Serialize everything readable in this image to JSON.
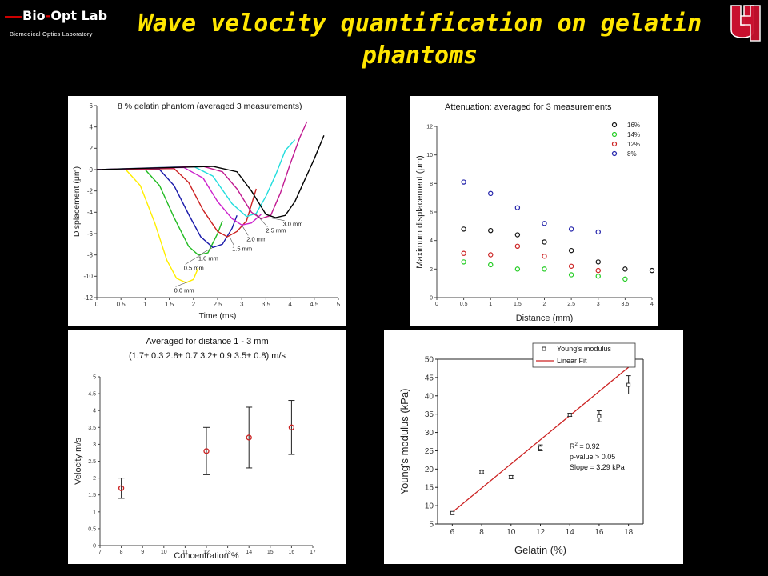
{
  "header": {
    "logo_main_1": "Bio",
    "logo_main_2": "Opt",
    "logo_main_3": " Lab",
    "logo_sub": "Biomedical Optics Laboratory",
    "title": "Wave velocity quantification on gelatin phantoms",
    "uh_logo": "UH"
  },
  "colors": {
    "background": "#000000",
    "title": "#ffe600",
    "logo_red": "#cc0000"
  },
  "chart_data": [
    {
      "type": "line",
      "title": "8 % gelatin phantom (averaged 3 measurements)",
      "xlabel": "Time (ms)",
      "ylabel": "Displacement (μm)",
      "xlim": [
        0,
        5
      ],
      "ylim": [
        -12,
        6
      ],
      "xticks": [
        "0",
        "0.5",
        "1",
        "1.5",
        "2",
        "2.5",
        "3",
        "3.5",
        "4",
        "4.5",
        "5"
      ],
      "yticks": [
        "-12",
        "-10",
        "-8",
        "-6",
        "-4",
        "-2",
        "0",
        "2",
        "4",
        "6"
      ],
      "series": [
        {
          "name": "0.0 mm",
          "color": "#ffee00",
          "points": [
            [
              0,
              0
            ],
            [
              0.6,
              0
            ],
            [
              0.9,
              -1.5
            ],
            [
              1.2,
              -5
            ],
            [
              1.45,
              -8.5
            ],
            [
              1.65,
              -10.2
            ],
            [
              1.85,
              -10.6
            ],
            [
              2.0,
              -10.3
            ],
            [
              2.1,
              -9.2
            ]
          ]
        },
        {
          "name": "0.5 mm",
          "color": "#22bb22",
          "points": [
            [
              0,
              0
            ],
            [
              1.0,
              0
            ],
            [
              1.3,
              -1.5
            ],
            [
              1.6,
              -4.5
            ],
            [
              1.9,
              -7.2
            ],
            [
              2.1,
              -8.0
            ],
            [
              2.3,
              -7.8
            ],
            [
              2.5,
              -6.0
            ],
            [
              2.6,
              -4.8
            ]
          ]
        },
        {
          "name": "1.0 mm",
          "color": "#1a1aaa",
          "points": [
            [
              0,
              0
            ],
            [
              1.3,
              0
            ],
            [
              1.6,
              -1.5
            ],
            [
              1.9,
              -4.2
            ],
            [
              2.15,
              -6.3
            ],
            [
              2.4,
              -7.3
            ],
            [
              2.6,
              -7.0
            ],
            [
              2.8,
              -5.5
            ],
            [
              2.9,
              -4.3
            ]
          ]
        },
        {
          "name": "1.5 mm",
          "color": "#cc2222",
          "points": [
            [
              0,
              0
            ],
            [
              1.6,
              0.1
            ],
            [
              1.9,
              -1.2
            ],
            [
              2.2,
              -3.8
            ],
            [
              2.5,
              -5.8
            ],
            [
              2.7,
              -6.3
            ],
            [
              2.9,
              -5.8
            ],
            [
              3.1,
              -4.8
            ],
            [
              3.3,
              -1.8
            ]
          ]
        },
        {
          "name": "2.0 mm",
          "color": "#cc22cc",
          "points": [
            [
              0,
              0
            ],
            [
              1.8,
              0.2
            ],
            [
              2.2,
              -0.8
            ],
            [
              2.5,
              -3.0
            ],
            [
              2.8,
              -4.6
            ],
            [
              3.0,
              -5.2
            ],
            [
              3.2,
              -5.0
            ],
            [
              3.4,
              -4.2
            ]
          ]
        },
        {
          "name": "2.5 mm",
          "color": "#22dddd",
          "points": [
            [
              0,
              0
            ],
            [
              2.0,
              0.3
            ],
            [
              2.4,
              -0.6
            ],
            [
              2.8,
              -3.2
            ],
            [
              3.1,
              -4.4
            ],
            [
              3.3,
              -4.1
            ],
            [
              3.5,
              -2.5
            ],
            [
              3.7,
              -0.5
            ],
            [
              3.9,
              1.8
            ],
            [
              4.1,
              2.8
            ]
          ]
        },
        {
          "name": "3.0 mm",
          "color": "#c01890",
          "points": [
            [
              0,
              0
            ],
            [
              2.2,
              0.3
            ],
            [
              2.6,
              -0.2
            ],
            [
              2.9,
              -1.8
            ],
            [
              3.2,
              -4.0
            ],
            [
              3.4,
              -4.6
            ],
            [
              3.6,
              -4.3
            ],
            [
              3.8,
              -2.2
            ],
            [
              4.0,
              0.5
            ],
            [
              4.2,
              3.0
            ],
            [
              4.35,
              4.5
            ]
          ]
        },
        {
          "name": "3.0 mm (b)",
          "color": "#000000",
          "points": [
            [
              0,
              0
            ],
            [
              2.4,
              0.3
            ],
            [
              2.9,
              -0.2
            ],
            [
              3.2,
              -2.0
            ],
            [
              3.5,
              -4.2
            ],
            [
              3.7,
              -4.5
            ],
            [
              3.9,
              -4.3
            ],
            [
              4.1,
              -3.0
            ],
            [
              4.3,
              -1.0
            ],
            [
              4.5,
              1.0
            ],
            [
              4.7,
              3.2
            ]
          ]
        }
      ],
      "annotations": [
        "0.0 mm",
        "0.5 mm",
        "1.0 mm",
        "1.5 mm",
        "2.0 mm",
        "2.5 mm",
        "3.0 mm"
      ]
    },
    {
      "type": "scatter",
      "title": "Attenuation: averaged for 3 measurements",
      "xlabel": "Distance (mm)",
      "ylabel": "Maximum displacement (μm)",
      "xlim": [
        0,
        4
      ],
      "ylim": [
        0,
        12
      ],
      "xticks": [
        "0",
        "0.5",
        "1",
        "1.5",
        "2",
        "2.5",
        "3",
        "3.5",
        "4"
      ],
      "yticks": [
        "0",
        "2",
        "4",
        "6",
        "8",
        "10",
        "12"
      ],
      "legend_position": "top-right",
      "series": [
        {
          "name": "16%",
          "color": "#111111",
          "x": [
            0.5,
            1,
            1.5,
            2,
            2.5,
            3,
            3.5,
            4
          ],
          "y": [
            4.8,
            4.7,
            4.4,
            3.9,
            3.3,
            2.5,
            2.0,
            1.9
          ]
        },
        {
          "name": "14%",
          "color": "#22cc22",
          "x": [
            0.5,
            1,
            1.5,
            2,
            2.5,
            3,
            3.5
          ],
          "y": [
            2.5,
            2.3,
            2.0,
            2.0,
            1.6,
            1.5,
            1.3
          ]
        },
        {
          "name": "12%",
          "color": "#cc2222",
          "x": [
            0.5,
            1,
            1.5,
            2,
            2.5,
            3
          ],
          "y": [
            3.1,
            3.0,
            3.6,
            2.9,
            2.2,
            1.9
          ]
        },
        {
          "name": "8%",
          "color": "#2222aa",
          "x": [
            0.5,
            1,
            1.5,
            2,
            2.5,
            3
          ],
          "y": [
            8.1,
            7.3,
            6.3,
            5.2,
            4.8,
            4.6
          ]
        }
      ]
    },
    {
      "type": "scatter",
      "title": "Averaged for distance 1 - 3 mm",
      "subtitle": "(1.7± 0.3  2.8± 0.7  3.2± 0.9  3.5± 0.8) m/s",
      "xlabel": "Concentration %",
      "ylabel": "Velocity m/s",
      "xlim": [
        7,
        17
      ],
      "ylim": [
        0,
        5
      ],
      "xticks": [
        "7",
        "8",
        "9",
        "10",
        "11",
        "12",
        "13",
        "14",
        "15",
        "16",
        "17"
      ],
      "yticks": [
        "0",
        "0.5",
        "1",
        "1.5",
        "2",
        "2.5",
        "3",
        "3.5",
        "4",
        "4.5",
        "5"
      ],
      "x": [
        8,
        12,
        14,
        16
      ],
      "y": [
        1.7,
        2.8,
        3.2,
        3.5
      ],
      "error": [
        0.3,
        0.7,
        0.9,
        0.8
      ],
      "color": "#cc2222"
    },
    {
      "type": "scatter",
      "xlabel": "Gelatin (%)",
      "ylabel": "Young's modulus (kPa)",
      "xlim": [
        5,
        19
      ],
      "ylim": [
        5,
        50
      ],
      "xticks": [
        "6",
        "8",
        "10",
        "12",
        "14",
        "16",
        "18"
      ],
      "yticks": [
        "5",
        "10",
        "15",
        "20",
        "25",
        "30",
        "35",
        "40",
        "45",
        "50"
      ],
      "legend": [
        "Young's modulus",
        "Linear Fit"
      ],
      "legend_position": "top-center",
      "x": [
        6,
        8,
        10,
        12,
        14,
        16,
        18
      ],
      "y": [
        8,
        19.2,
        17.8,
        25.8,
        34.8,
        34.4,
        43
      ],
      "error": [
        0.4,
        0.4,
        0.4,
        0.8,
        0.4,
        1.5,
        2.5
      ],
      "fit": {
        "x": [
          6,
          18
        ],
        "y": [
          8.2,
          47.8
        ],
        "color": "#cc2222"
      },
      "annotation": {
        "r2_base": "R",
        "r2_exp": "2",
        "r2_val": " = 0.92",
        "pvalue": "p-value > 0.05",
        "slope": "Slope = 3.29 kPa"
      }
    }
  ]
}
